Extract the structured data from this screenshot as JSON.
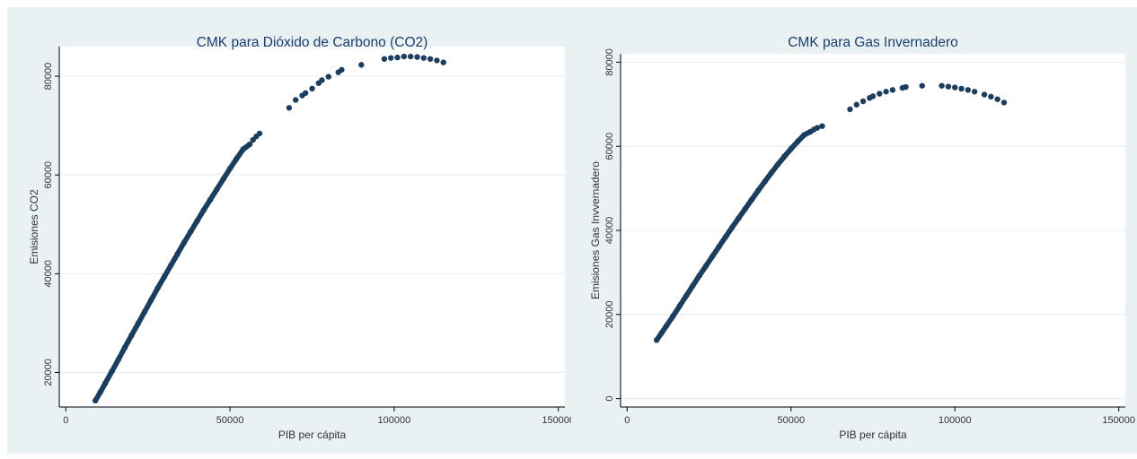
{
  "colors": {
    "panel_background": "#e9f1f3",
    "plot_background": "#ffffff",
    "grid": "#e4ecee",
    "axis": "#000000",
    "marker": "#1b3e5e",
    "title": "#1c3f6e"
  },
  "chart_data": [
    {
      "type": "scatter",
      "title": "CMK para Dióxido de Carbono (CO2)",
      "xlabel": "PIB per cápita",
      "ylabel": "Emisiones CO2",
      "xlim": [
        -2000,
        152000
      ],
      "ylim": [
        13000,
        86000
      ],
      "xticks": [
        0,
        50000,
        100000,
        150000
      ],
      "xtick_labels": [
        "0",
        "50000",
        "100000",
        "150000"
      ],
      "yticks": [
        20000,
        40000,
        60000,
        80000
      ],
      "ytick_labels": [
        "20000",
        "40000",
        "60000",
        "80000"
      ],
      "grid": true,
      "dense_range": [
        9000,
        56000
      ],
      "x": [
        9000,
        10500,
        12000,
        14000,
        16000,
        18000,
        20000,
        22000,
        24000,
        26000,
        28000,
        30000,
        32000,
        34000,
        36000,
        38000,
        40000,
        42000,
        44000,
        46000,
        48000,
        50000,
        52000,
        54000,
        56000,
        57000,
        58000,
        59000,
        68000,
        70000,
        72000,
        73000,
        75000,
        77000,
        78000,
        80000,
        83000,
        84000,
        90000,
        97000,
        99000,
        101000,
        103000,
        105000,
        107000,
        109000,
        111000,
        113000,
        115000
      ],
      "y": [
        14300,
        16000,
        17800,
        20200,
        22600,
        25100,
        27500,
        29900,
        32300,
        34700,
        37100,
        39400,
        41700,
        44000,
        46300,
        48500,
        50700,
        52900,
        55000,
        57100,
        59200,
        61300,
        63300,
        65200,
        66200,
        67100,
        67800,
        68400,
        73600,
        75200,
        76100,
        76600,
        77500,
        78600,
        79200,
        79900,
        80800,
        81300,
        82300,
        83500,
        83700,
        83800,
        84000,
        84000,
        83900,
        83700,
        83500,
        83200,
        82800
      ]
    },
    {
      "type": "scatter",
      "title": "CMK para Gas Invernadero",
      "xlabel": "PIB per cápita",
      "ylabel": "Emisiones Gas Invvernadero",
      "xlim": [
        -2000,
        152000
      ],
      "ylim": [
        -2000,
        82000
      ],
      "xticks": [
        0,
        50000,
        100000,
        150000
      ],
      "xtick_labels": [
        "0",
        "50000",
        "100000",
        "150000"
      ],
      "yticks": [
        0,
        20000,
        40000,
        60000,
        80000
      ],
      "ytick_labels": [
        "0",
        "20000",
        "40000",
        "60000",
        "80000"
      ],
      "grid": true,
      "dense_range": [
        9000,
        56000
      ],
      "x": [
        9000,
        10500,
        12000,
        14000,
        16000,
        18000,
        20000,
        22000,
        24000,
        26000,
        28000,
        30000,
        32000,
        34000,
        36000,
        38000,
        40000,
        42000,
        44000,
        46000,
        48000,
        50000,
        52000,
        54000,
        56000,
        57000,
        58000,
        59500,
        68000,
        70000,
        72000,
        74000,
        75000,
        77000,
        79000,
        81000,
        84000,
        85000,
        90000,
        96000,
        98000,
        100000,
        102000,
        104000,
        106000,
        109000,
        111000,
        113000,
        115000
      ],
      "y": [
        13900,
        15600,
        17300,
        19600,
        22000,
        24400,
        26800,
        29200,
        31500,
        33800,
        36100,
        38400,
        40700,
        42900,
        45100,
        47300,
        49500,
        51600,
        53700,
        55700,
        57600,
        59400,
        61100,
        62700,
        63500,
        64000,
        64400,
        64800,
        68800,
        69900,
        70700,
        71500,
        71900,
        72500,
        73000,
        73400,
        73900,
        74100,
        74400,
        74400,
        74200,
        74000,
        73700,
        73400,
        73000,
        72300,
        71800,
        71200,
        70400
      ]
    }
  ]
}
